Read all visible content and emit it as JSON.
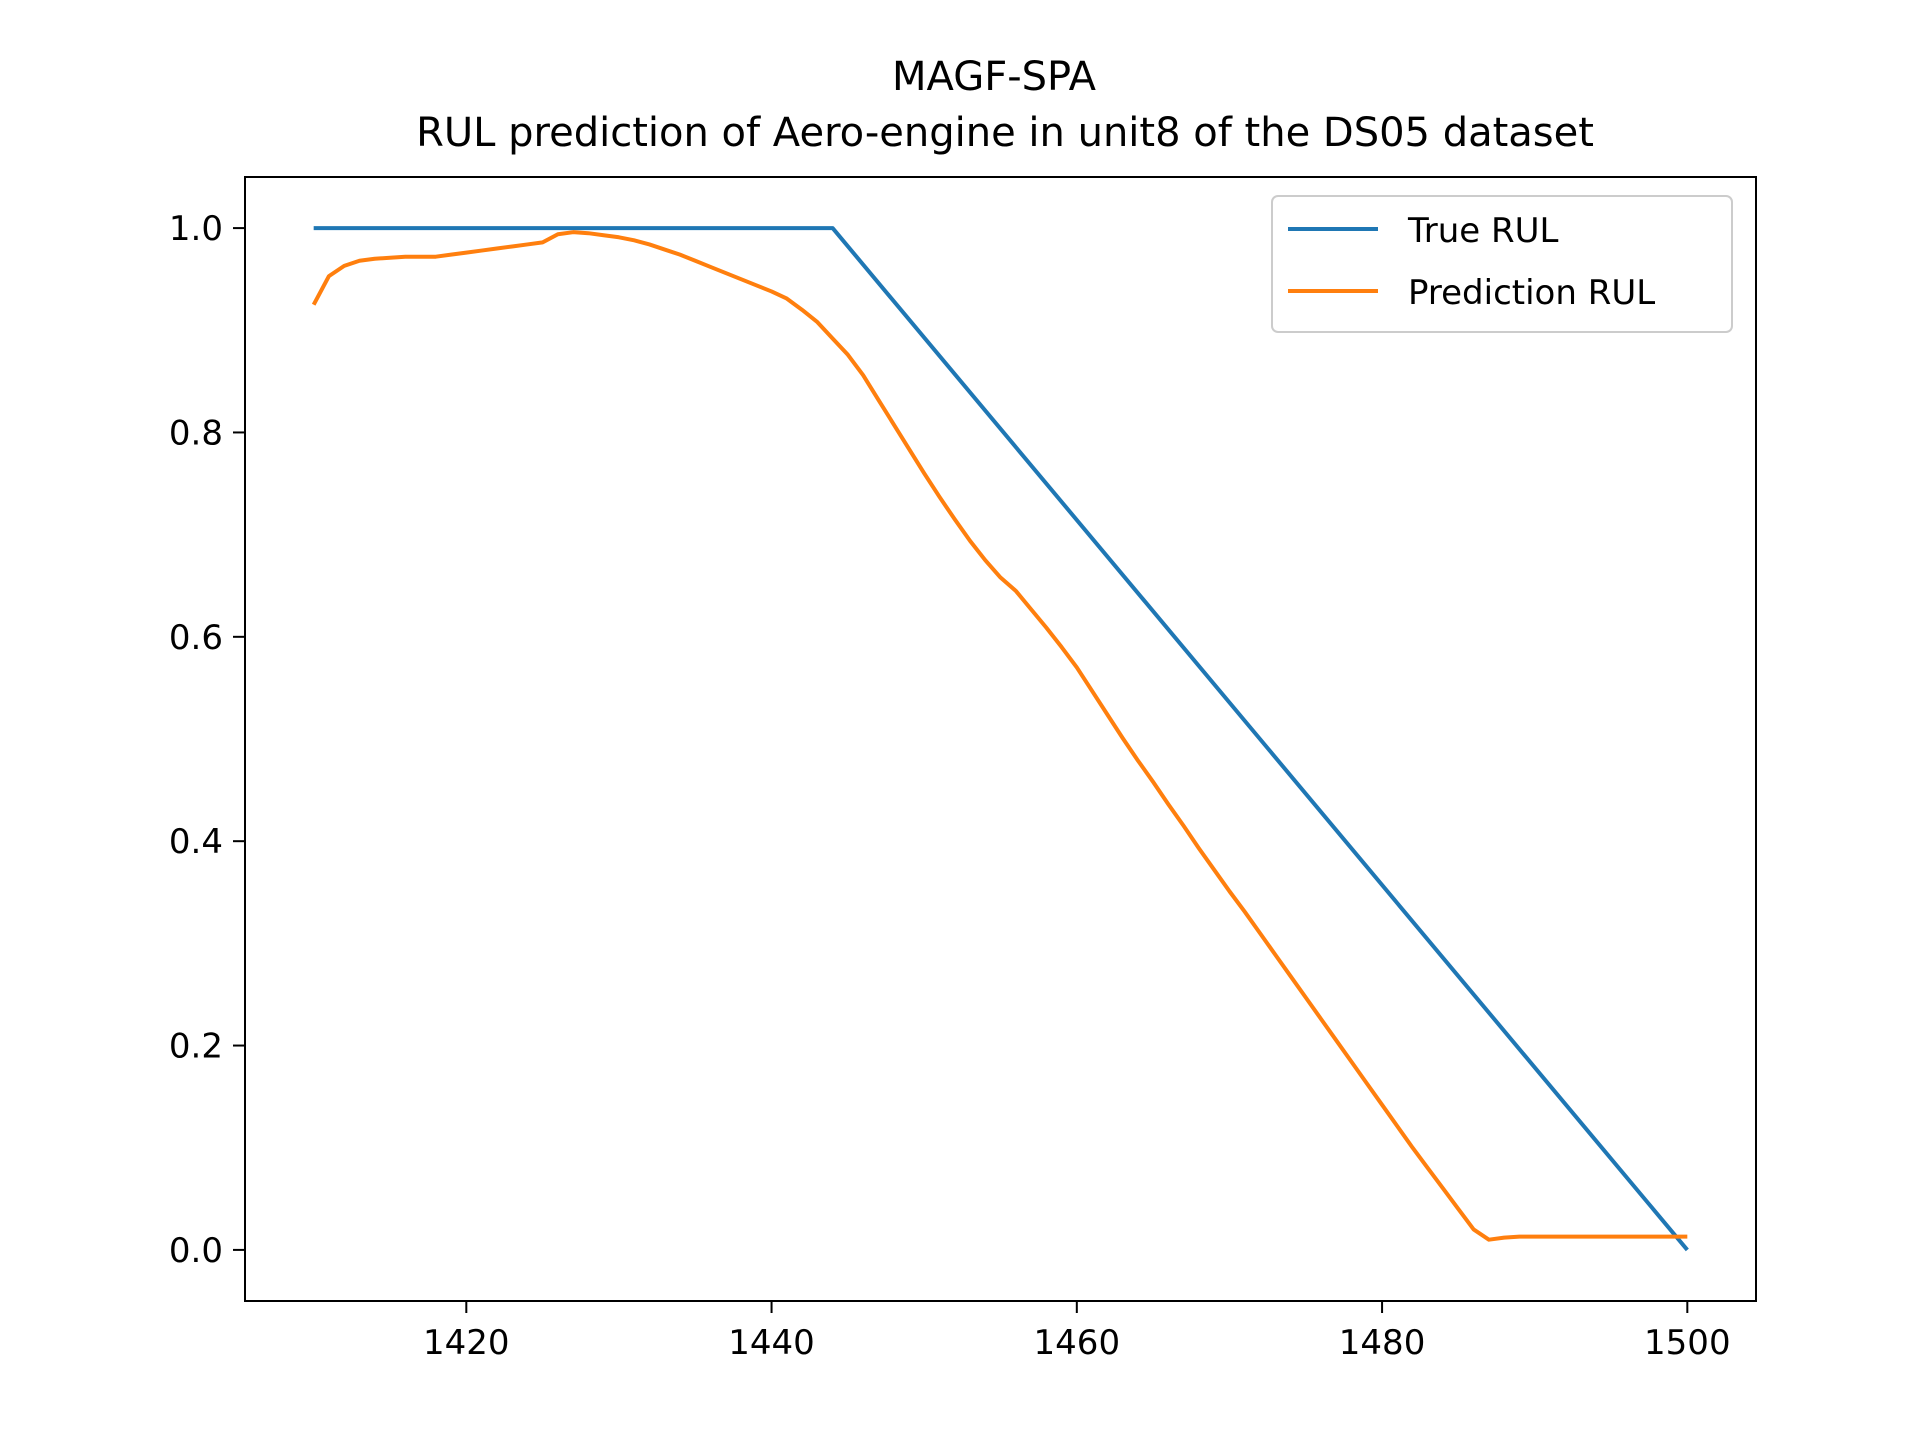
{
  "chart_data": {
    "type": "line",
    "title": "MAGF-SPA",
    "subtitle": "RUL prediction of Aero-engine in unit8 of the DS05 dataset",
    "xlabel": "",
    "ylabel": "",
    "xlim": [
      1405.5,
      1504.5
    ],
    "ylim": [
      -0.05,
      1.05
    ],
    "xticks": [
      1420,
      1440,
      1460,
      1480,
      1500
    ],
    "yticks": [
      0.0,
      0.2,
      0.4,
      0.6,
      0.8,
      1.0
    ],
    "ytick_labels": [
      "0.0",
      "0.2",
      "0.4",
      "0.6",
      "0.8",
      "1.0"
    ],
    "grid": false,
    "legend_position": "top-right",
    "series": [
      {
        "name": "True RUL",
        "color": "#1f77b4",
        "x": [
          1410,
          1444,
          1500
        ],
        "y": [
          1.0,
          1.0,
          0.0
        ]
      },
      {
        "name": "Prediction RUL",
        "color": "#ff7f0e",
        "x": [
          1410,
          1411,
          1412,
          1413,
          1414,
          1415,
          1416,
          1417,
          1418,
          1419,
          1420,
          1421,
          1422,
          1423,
          1424,
          1425,
          1426,
          1427,
          1428,
          1429,
          1430,
          1431,
          1432,
          1433,
          1434,
          1435,
          1436,
          1437,
          1438,
          1439,
          1440,
          1441,
          1442,
          1443,
          1444,
          1445,
          1446,
          1447,
          1448,
          1449,
          1450,
          1451,
          1452,
          1453,
          1454,
          1455,
          1456,
          1457,
          1458,
          1459,
          1460,
          1461,
          1462,
          1463,
          1464,
          1465,
          1466,
          1467,
          1468,
          1469,
          1470,
          1471,
          1472,
          1473,
          1474,
          1475,
          1476,
          1477,
          1478,
          1479,
          1480,
          1481,
          1482,
          1483,
          1484,
          1485,
          1486,
          1487,
          1488,
          1489,
          1490,
          1491,
          1492,
          1493,
          1494,
          1495,
          1496,
          1497,
          1498,
          1499,
          1500
        ],
        "y": [
          0.925,
          0.953,
          0.963,
          0.968,
          0.97,
          0.971,
          0.972,
          0.972,
          0.972,
          0.974,
          0.976,
          0.978,
          0.98,
          0.982,
          0.984,
          0.986,
          0.994,
          0.996,
          0.995,
          0.993,
          0.991,
          0.988,
          0.984,
          0.979,
          0.974,
          0.968,
          0.962,
          0.956,
          0.95,
          0.944,
          0.938,
          0.931,
          0.92,
          0.908,
          0.892,
          0.876,
          0.856,
          0.832,
          0.808,
          0.784,
          0.76,
          0.737,
          0.715,
          0.694,
          0.675,
          0.658,
          0.645,
          0.627,
          0.609,
          0.59,
          0.57,
          0.547,
          0.524,
          0.501,
          0.479,
          0.458,
          0.436,
          0.415,
          0.393,
          0.372,
          0.351,
          0.331,
          0.31,
          0.289,
          0.268,
          0.247,
          0.226,
          0.205,
          0.184,
          0.163,
          0.142,
          0.121,
          0.1,
          0.08,
          0.06,
          0.04,
          0.02,
          0.01,
          0.012,
          0.013,
          0.013,
          0.013,
          0.013,
          0.013,
          0.013,
          0.013,
          0.013,
          0.013,
          0.013,
          0.013,
          0.013
        ]
      }
    ]
  }
}
